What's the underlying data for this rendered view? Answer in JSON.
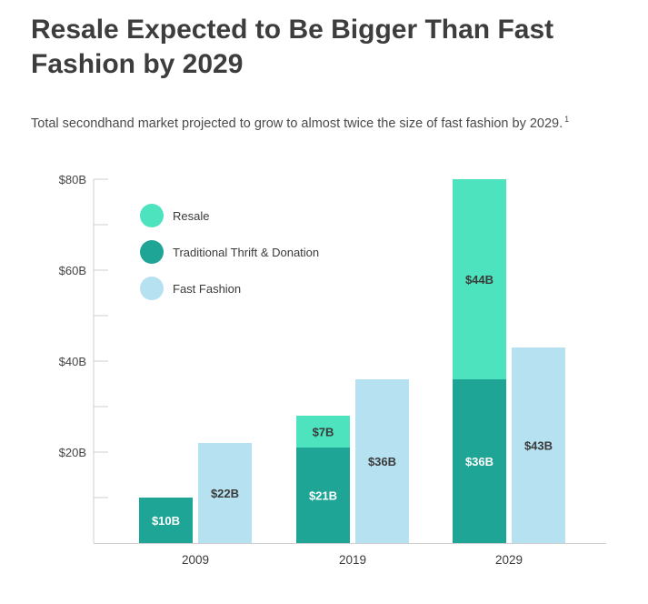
{
  "title": "Resale Expected to Be Bigger Than Fast Fashion by 2029",
  "subtitle": "Total secondhand market projected to grow to almost twice the size of fast fashion by 2029.",
  "footnote_marker": "1",
  "chart_data": {
    "type": "bar",
    "stacked_group": "Secondhand",
    "categories": [
      "2009",
      "2019",
      "2029"
    ],
    "series": [
      {
        "name": "Traditional Thrift & Donation",
        "stack": "secondhand",
        "color": "#1fa596",
        "values": [
          10,
          21,
          36
        ],
        "labels": [
          "$10B",
          "$21B",
          "$36B"
        ]
      },
      {
        "name": "Resale",
        "stack": "secondhand",
        "color": "#4de3be",
        "values": [
          0,
          7,
          44
        ],
        "labels": [
          "",
          "$7B",
          "$44B"
        ]
      },
      {
        "name": "Fast Fashion",
        "stack": "fast",
        "color": "#b6e1f1",
        "values": [
          22,
          36,
          43
        ],
        "labels": [
          "$22B",
          "$36B",
          "$43B"
        ]
      }
    ],
    "legend": [
      {
        "name": "Resale",
        "color": "#4de3be"
      },
      {
        "name": "Traditional Thrift & Donation",
        "color": "#1fa596"
      },
      {
        "name": "Fast Fashion",
        "color": "#b6e1f1"
      }
    ],
    "legend_position": "top-left",
    "y_ticks": [
      {
        "value": 20,
        "label": "$20B"
      },
      {
        "value": 40,
        "label": "$40B"
      },
      {
        "value": 60,
        "label": "$60B"
      },
      {
        "value": 80,
        "label": "$80B"
      }
    ],
    "ylim": [
      0,
      80
    ],
    "xlabel": "",
    "ylabel": "",
    "grid": false
  }
}
